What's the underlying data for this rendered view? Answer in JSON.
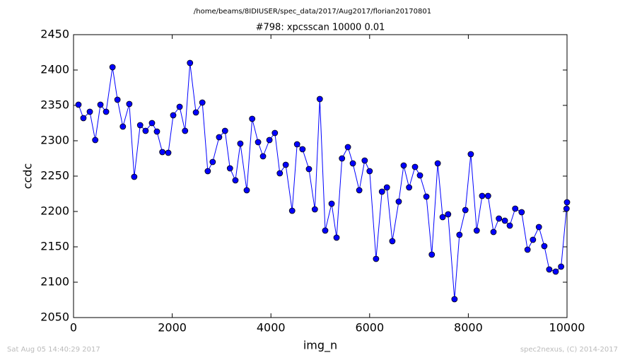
{
  "chart_data": {
    "type": "line",
    "suptitle": "/home/beams/8IDIUSER/spec_data/2017/Aug2017/florian20170801",
    "title": "#798: xpcsscan 10000 0.01",
    "xlabel": "img_n",
    "ylabel": "ccdc",
    "footer_left": "Sat Aug 05 14:40:29 2017",
    "footer_right": "spec2nexus, (C) 2014-2017",
    "x": [
      100,
      200,
      330,
      440,
      545,
      660,
      790,
      890,
      1000,
      1130,
      1230,
      1350,
      1460,
      1590,
      1690,
      1800,
      1920,
      2020,
      2150,
      2260,
      2360,
      2480,
      2610,
      2720,
      2820,
      2950,
      3070,
      3170,
      3280,
      3380,
      3510,
      3620,
      3740,
      3840,
      3970,
      4080,
      4180,
      4300,
      4430,
      4530,
      4640,
      4770,
      4890,
      4990,
      5100,
      5230,
      5330,
      5440,
      5560,
      5660,
      5790,
      5900,
      6000,
      6130,
      6250,
      6350,
      6460,
      6590,
      6690,
      6800,
      6920,
      7020,
      7150,
      7260,
      7380,
      7480,
      7590,
      7720,
      7820,
      7940,
      8050,
      8170,
      8280,
      8400,
      8510,
      8620,
      8740,
      8840,
      8950,
      9080,
      9200,
      9310,
      9430,
      9540,
      9640,
      9770,
      9880,
      9990,
      10000
    ],
    "series": [
      {
        "name": "ccdc",
        "color": "#0000ff",
        "marker_edge": "#000000",
        "values": [
          2351,
          2332,
          2341,
          2301,
          2351,
          2341,
          2404,
          2358,
          2320,
          2352,
          2249,
          2322,
          2314,
          2325,
          2313,
          2284,
          2283,
          2336,
          2348,
          2314,
          2410,
          2340,
          2354,
          2257,
          2270,
          2305,
          2314,
          2261,
          2244,
          2296,
          2230,
          2331,
          2298,
          2278,
          2301,
          2311,
          2254,
          2266,
          2201,
          2295,
          2288,
          2260,
          2203,
          2359,
          2173,
          2211,
          2163,
          2275,
          2291,
          2268,
          2230,
          2272,
          2257,
          2133,
          2228,
          2234,
          2158,
          2214,
          2265,
          2234,
          2263,
          2251,
          2221,
          2139,
          2268,
          2192,
          2196,
          2076,
          2167,
          2202,
          2281,
          2173,
          2222,
          2222,
          2171,
          2190,
          2187,
          2180,
          2204,
          2199,
          2146,
          2160,
          2178,
          2151,
          2118,
          2115,
          2122,
          2204,
          2213
        ]
      }
    ],
    "xlim": [
      0,
      10000
    ],
    "xticks": [
      0,
      2000,
      4000,
      6000,
      8000,
      10000
    ],
    "ylim": [
      2050,
      2450
    ],
    "yticks": [
      2050,
      2100,
      2150,
      2200,
      2250,
      2300,
      2350,
      2400,
      2450
    ],
    "grid": false
  }
}
